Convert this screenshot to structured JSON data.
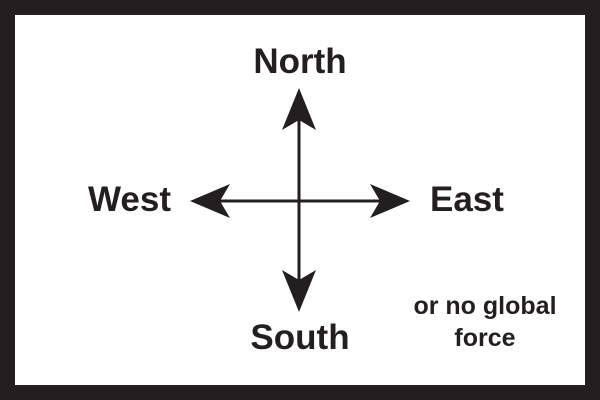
{
  "labels": {
    "north": "North",
    "south": "South",
    "west": "West",
    "east": "East",
    "note_line1": "or no global",
    "note_line2": "force"
  },
  "colors": {
    "frame": "#231f20",
    "background": "#ffffff",
    "ink": "#231f20"
  }
}
